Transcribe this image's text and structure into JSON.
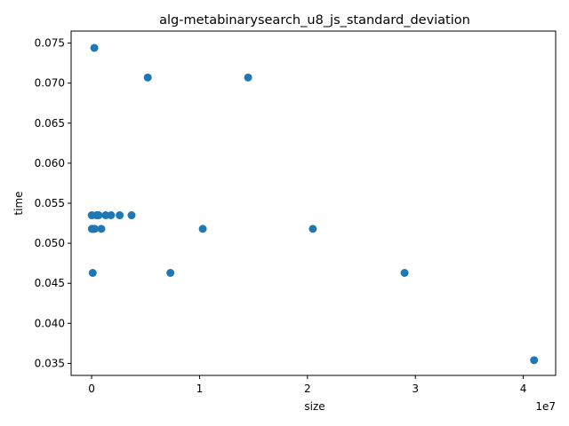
{
  "chart_data": {
    "type": "scatter",
    "title": "alg-metabinarysearch_u8_js_standard_deviation",
    "xlabel": "size",
    "ylabel": "time",
    "x_offset_text": "1e7",
    "xlim": [
      -1900000,
      43000000
    ],
    "ylim": [
      0.0335,
      0.0765
    ],
    "x_ticks": [
      0,
      10000000,
      20000000,
      30000000,
      40000000
    ],
    "x_tick_labels": [
      "0",
      "1",
      "2",
      "3",
      "4"
    ],
    "y_ticks": [
      0.035,
      0.04,
      0.045,
      0.05,
      0.055,
      0.06,
      0.065,
      0.07,
      0.075
    ],
    "y_tick_labels": [
      "0.035",
      "0.040",
      "0.045",
      "0.050",
      "0.055",
      "0.060",
      "0.065",
      "0.070",
      "0.075"
    ],
    "grid": false,
    "color": "#1f77b4",
    "points": [
      {
        "x": 10000,
        "y": 0.0535
      },
      {
        "x": 20000,
        "y": 0.0518
      },
      {
        "x": 50000,
        "y": 0.0518
      },
      {
        "x": 100000,
        "y": 0.0463
      },
      {
        "x": 150000,
        "y": 0.0518
      },
      {
        "x": 250000,
        "y": 0.0744
      },
      {
        "x": 300000,
        "y": 0.0518
      },
      {
        "x": 450000,
        "y": 0.0535
      },
      {
        "x": 650000,
        "y": 0.0535
      },
      {
        "x": 900000,
        "y": 0.0518
      },
      {
        "x": 1300000,
        "y": 0.0535
      },
      {
        "x": 1800000,
        "y": 0.0535
      },
      {
        "x": 2600000,
        "y": 0.0535
      },
      {
        "x": 3700000,
        "y": 0.0535
      },
      {
        "x": 5200000,
        "y": 0.0707
      },
      {
        "x": 7300000,
        "y": 0.0463
      },
      {
        "x": 10300000,
        "y": 0.0518
      },
      {
        "x": 14500000,
        "y": 0.0707
      },
      {
        "x": 20500000,
        "y": 0.0518
      },
      {
        "x": 29000000,
        "y": 0.0463
      },
      {
        "x": 41000000,
        "y": 0.0354
      }
    ]
  }
}
